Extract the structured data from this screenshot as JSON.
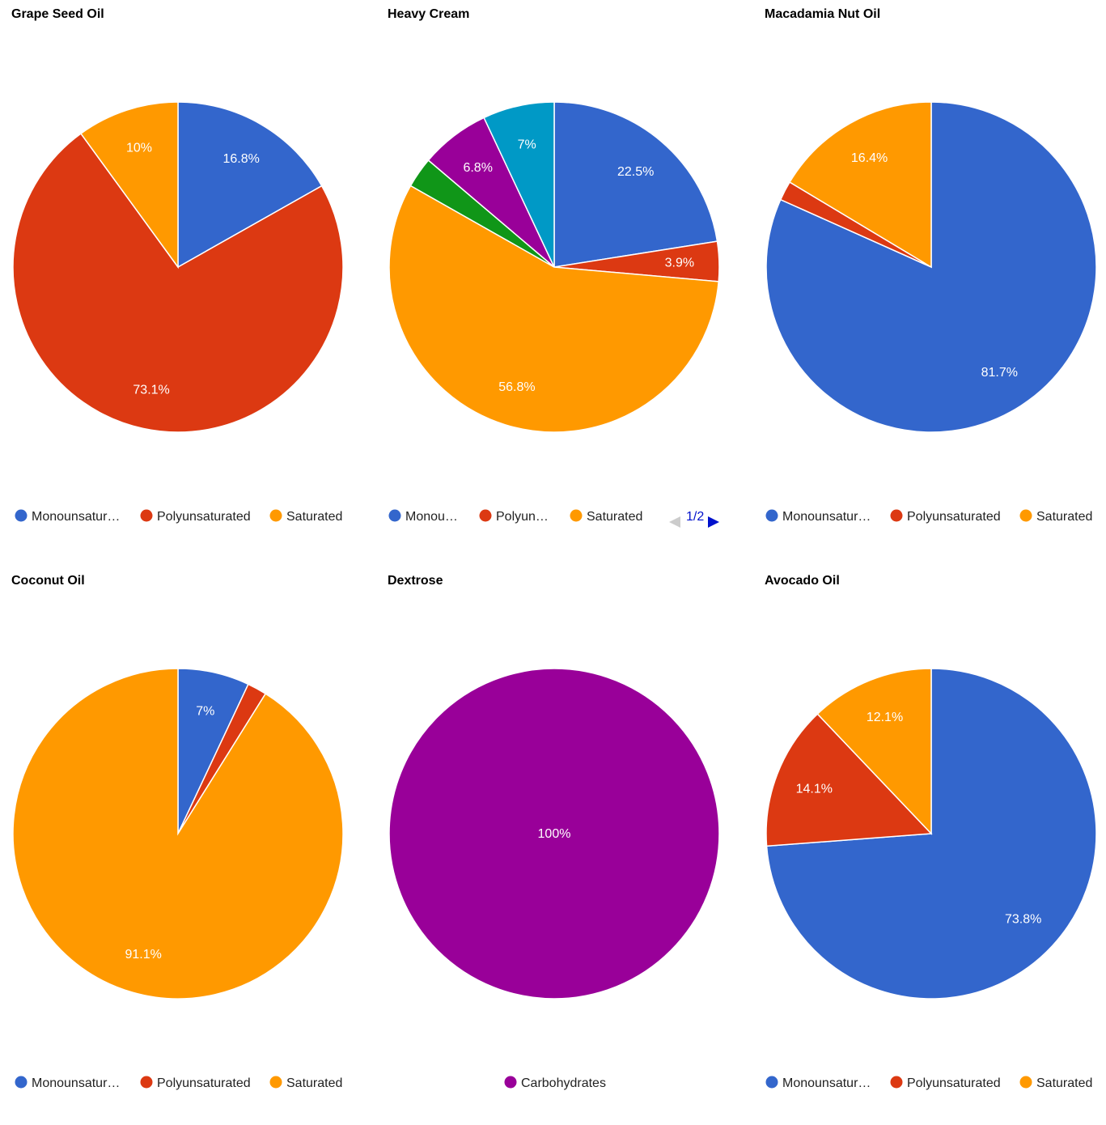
{
  "colors": {
    "Monounsaturated": "#3366cc",
    "Polyunsaturated": "#dc3912",
    "Saturated": "#ff9900",
    "green": "#109618",
    "purple": "#990099",
    "teal": "#0099c6",
    "Carbohydrates": "#990099"
  },
  "chart_data": [
    {
      "type": "pie",
      "title": "Grape Seed Oil",
      "slices": [
        {
          "name": "Monounsaturated",
          "value": 16.8,
          "label": "16.8%",
          "color": "#3366cc"
        },
        {
          "name": "Polyunsaturated",
          "value": 73.1,
          "label": "73.1%",
          "color": "#dc3912"
        },
        {
          "name": "Saturated",
          "value": 10.0,
          "label": "10%",
          "color": "#ff9900"
        }
      ],
      "legend": [
        {
          "label": "Monounsatur…",
          "color": "#3366cc"
        },
        {
          "label": "Polyunsaturated",
          "color": "#dc3912"
        },
        {
          "label": "Saturated",
          "color": "#ff9900"
        }
      ],
      "legend_position": "bottom"
    },
    {
      "type": "pie",
      "title": "Heavy Cream",
      "slices": [
        {
          "name": "Monounsaturated",
          "value": 22.5,
          "label": "22.5%",
          "color": "#3366cc"
        },
        {
          "name": "Polyunsaturated",
          "value": 3.9,
          "label": "3.9%",
          "color": "#dc3912"
        },
        {
          "name": "Saturated",
          "value": 56.8,
          "label": "56.8%",
          "color": "#ff9900"
        },
        {
          "name": "",
          "value": 3.0,
          "label": "",
          "color": "#109618"
        },
        {
          "name": "",
          "value": 6.8,
          "label": "6.8%",
          "color": "#990099"
        },
        {
          "name": "",
          "value": 7.0,
          "label": "7%",
          "color": "#0099c6"
        }
      ],
      "legend": [
        {
          "label": "Monou…",
          "color": "#3366cc"
        },
        {
          "label": "Polyun…",
          "color": "#dc3912"
        },
        {
          "label": "Saturated",
          "color": "#ff9900"
        }
      ],
      "pager": "1/2",
      "legend_position": "bottom"
    },
    {
      "type": "pie",
      "title": "Macadamia Nut Oil",
      "slices": [
        {
          "name": "Monounsaturated",
          "value": 81.7,
          "label": "81.7%",
          "color": "#3366cc"
        },
        {
          "name": "Polyunsaturated",
          "value": 1.9,
          "label": "",
          "color": "#dc3912"
        },
        {
          "name": "Saturated",
          "value": 16.4,
          "label": "16.4%",
          "color": "#ff9900"
        }
      ],
      "legend": [
        {
          "label": "Monounsatur…",
          "color": "#3366cc"
        },
        {
          "label": "Polyunsaturated",
          "color": "#dc3912"
        },
        {
          "label": "Saturated",
          "color": "#ff9900"
        }
      ],
      "legend_position": "bottom"
    },
    {
      "type": "pie",
      "title": "Coconut Oil",
      "slices": [
        {
          "name": "Monounsaturated",
          "value": 7.0,
          "label": "7%",
          "color": "#3366cc"
        },
        {
          "name": "Polyunsaturated",
          "value": 1.9,
          "label": "",
          "color": "#dc3912"
        },
        {
          "name": "Saturated",
          "value": 91.1,
          "label": "91.1%",
          "color": "#ff9900"
        }
      ],
      "legend": [
        {
          "label": "Monounsatur…",
          "color": "#3366cc"
        },
        {
          "label": "Polyunsaturated",
          "color": "#dc3912"
        },
        {
          "label": "Saturated",
          "color": "#ff9900"
        }
      ],
      "legend_position": "bottom"
    },
    {
      "type": "pie",
      "title": "Dextrose",
      "slices": [
        {
          "name": "Carbohydrates",
          "value": 100,
          "label": "100%",
          "color": "#990099"
        }
      ],
      "legend": [
        {
          "label": "Carbohydrates",
          "color": "#990099"
        }
      ],
      "legend_position": "bottom"
    },
    {
      "type": "pie",
      "title": "Avocado Oil",
      "slices": [
        {
          "name": "Monounsaturated",
          "value": 73.8,
          "label": "73.8%",
          "color": "#3366cc"
        },
        {
          "name": "Polyunsaturated",
          "value": 14.1,
          "label": "14.1%",
          "color": "#dc3912"
        },
        {
          "name": "Saturated",
          "value": 12.1,
          "label": "12.1%",
          "color": "#ff9900"
        }
      ],
      "legend": [
        {
          "label": "Monounsatur…",
          "color": "#3366cc"
        },
        {
          "label": "Polyunsaturated",
          "color": "#dc3912"
        },
        {
          "label": "Saturated",
          "color": "#ff9900"
        }
      ],
      "legend_position": "bottom"
    }
  ]
}
